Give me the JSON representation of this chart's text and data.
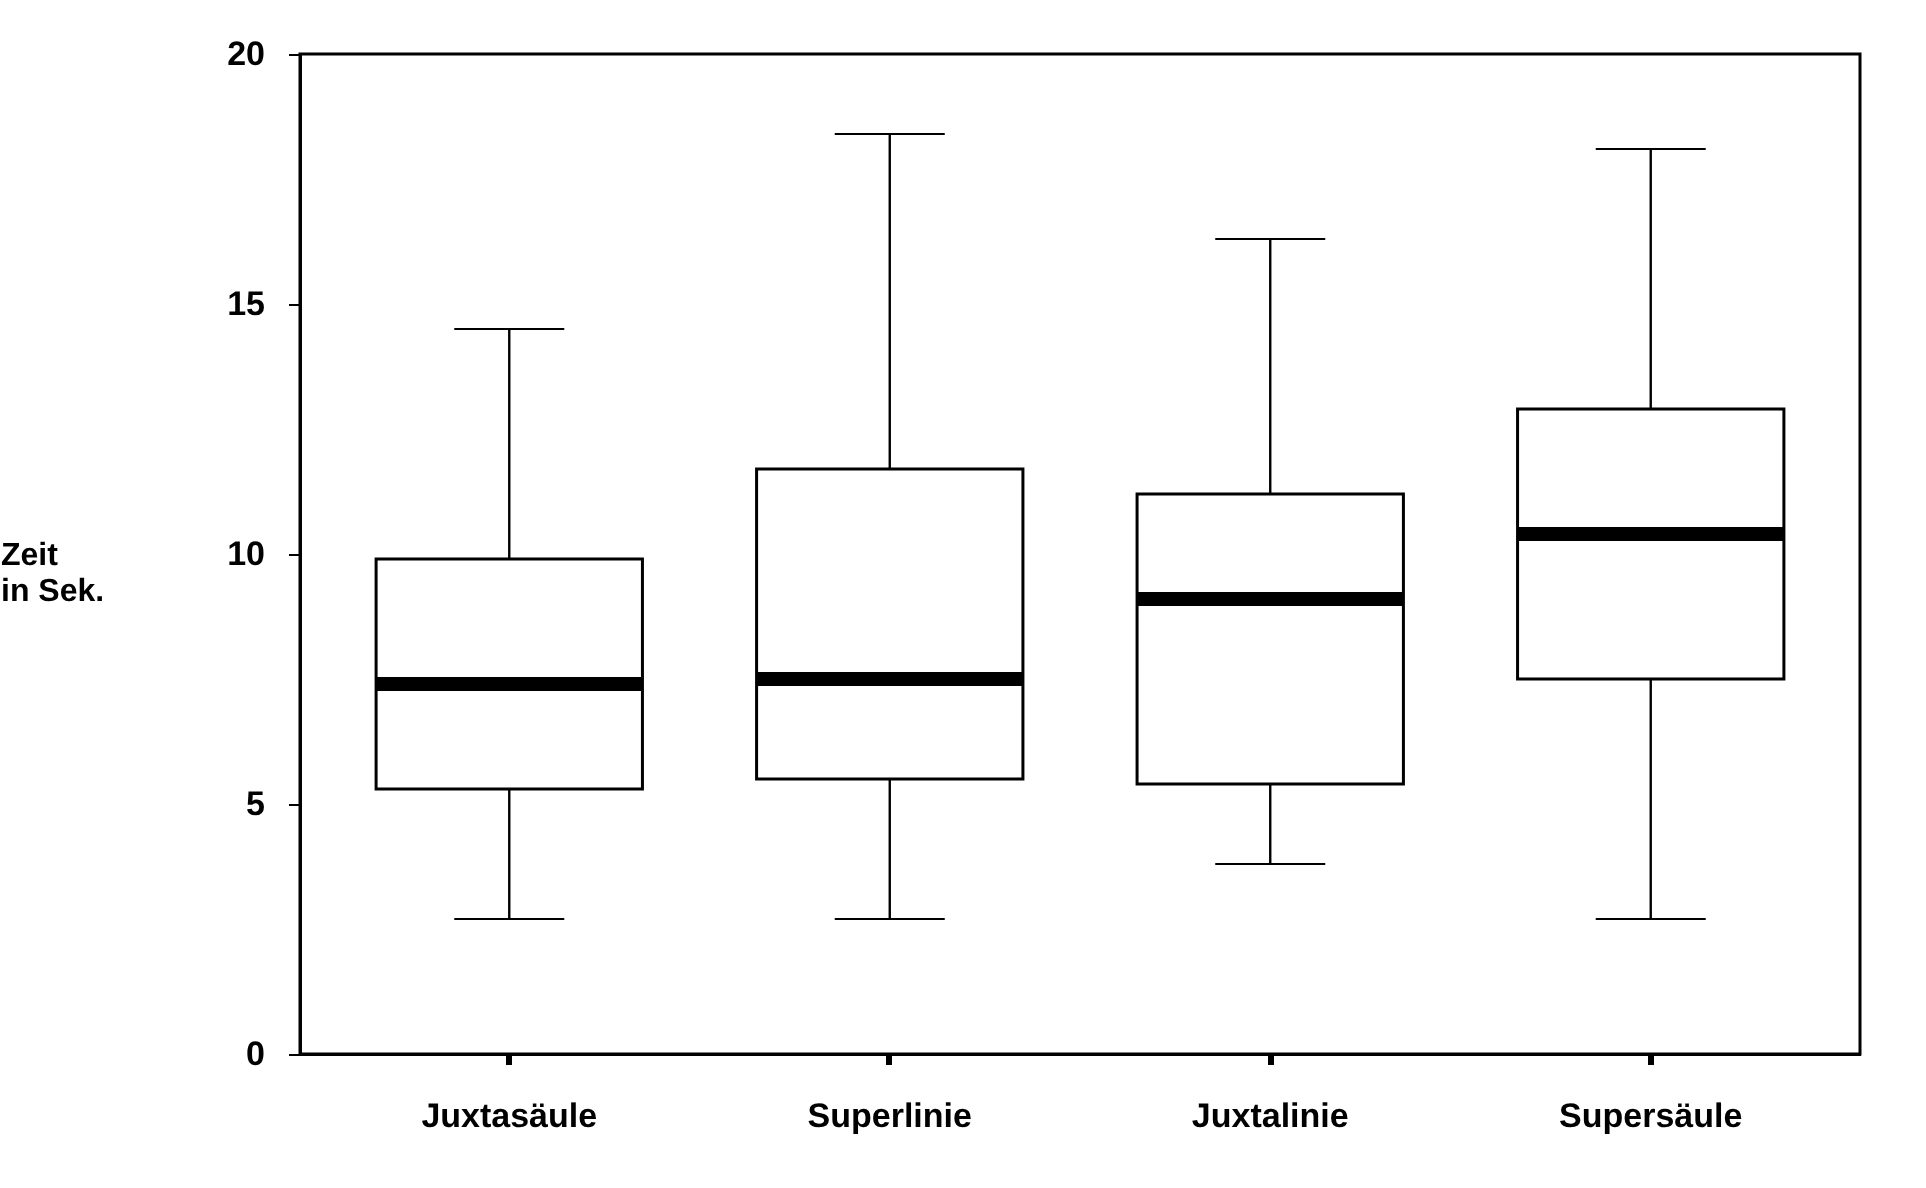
{
  "chart_data": {
    "type": "box",
    "ylabel": "Zeit in Sek.",
    "categories": [
      "Juxtasäule",
      "Superlinie",
      "Juxtalinie",
      "Supersäule"
    ],
    "boxes": [
      {
        "low": 2.7,
        "q1": 5.3,
        "median": 7.4,
        "q3": 9.9,
        "high": 14.5
      },
      {
        "low": 2.7,
        "q1": 5.5,
        "median": 7.5,
        "q3": 11.7,
        "high": 18.4
      },
      {
        "low": 3.8,
        "q1": 5.4,
        "median": 9.1,
        "q3": 11.2,
        "high": 16.3
      },
      {
        "low": 2.7,
        "q1": 7.5,
        "median": 10.4,
        "q3": 12.9,
        "high": 18.1
      }
    ],
    "ylim": [
      0,
      20
    ],
    "yticks": [
      0,
      5,
      10,
      15,
      20
    ],
    "grid": false
  }
}
